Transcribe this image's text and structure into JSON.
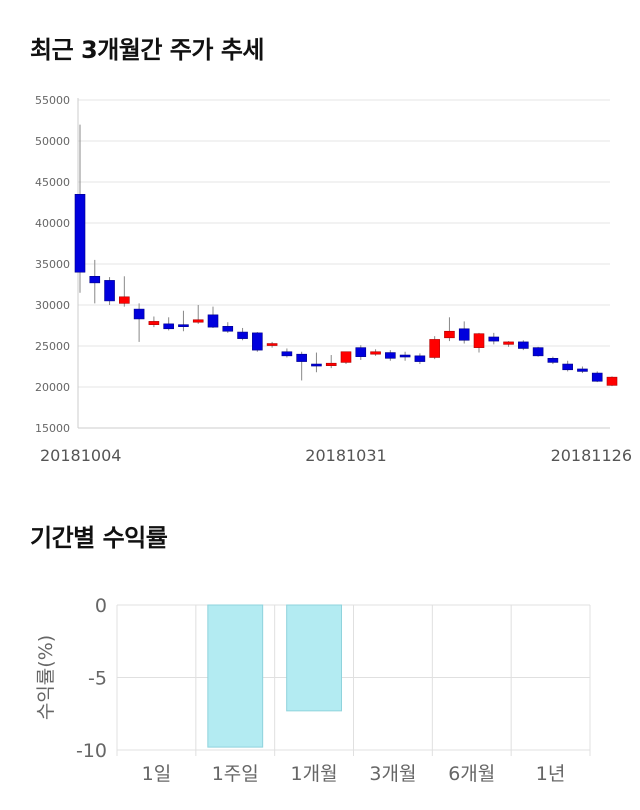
{
  "sections": {
    "price_title": "최근 3개월간 주가 추세",
    "returns_title": "기간별 수익률"
  },
  "chart_data": [
    {
      "type": "candlestick",
      "title": "최근 3개월간 주가 추세",
      "ylim": [
        15000,
        55000
      ],
      "yticks": [
        15000,
        20000,
        25000,
        30000,
        35000,
        40000,
        45000,
        50000,
        55000
      ],
      "x_tick_labels": [
        {
          "index": 0,
          "label": "20181004"
        },
        {
          "index": 18,
          "label": "20181031"
        },
        {
          "index": 36,
          "label": "20181126"
        }
      ],
      "grid": true,
      "colors": {
        "up": "#ff0000",
        "down": "#0000dd",
        "wick": "#888888",
        "grid": "#e6e6e6"
      },
      "candles": [
        {
          "o": 43500,
          "h": 52000,
          "l": 31500,
          "c": 34000
        },
        {
          "o": 33500,
          "h": 35500,
          "l": 30200,
          "c": 32700
        },
        {
          "o": 33000,
          "h": 33400,
          "l": 30000,
          "c": 30500
        },
        {
          "o": 30200,
          "h": 33500,
          "l": 29800,
          "c": 31000
        },
        {
          "o": 29500,
          "h": 30200,
          "l": 25500,
          "c": 28300
        },
        {
          "o": 27600,
          "h": 28600,
          "l": 27300,
          "c": 28000
        },
        {
          "o": 27700,
          "h": 28500,
          "l": 26900,
          "c": 27100
        },
        {
          "o": 27600,
          "h": 29300,
          "l": 26800,
          "c": 27400
        },
        {
          "o": 27900,
          "h": 30000,
          "l": 27700,
          "c": 28200
        },
        {
          "o": 28800,
          "h": 29800,
          "l": 27200,
          "c": 27300
        },
        {
          "o": 27400,
          "h": 27900,
          "l": 26600,
          "c": 26800
        },
        {
          "o": 26700,
          "h": 27200,
          "l": 25700,
          "c": 25900
        },
        {
          "o": 26600,
          "h": 26700,
          "l": 24300,
          "c": 24500
        },
        {
          "o": 25100,
          "h": 25500,
          "l": 24800,
          "c": 25300
        },
        {
          "o": 24300,
          "h": 24700,
          "l": 23600,
          "c": 23800
        },
        {
          "o": 24000,
          "h": 24300,
          "l": 20800,
          "c": 23100
        },
        {
          "o": 22800,
          "h": 24200,
          "l": 21800,
          "c": 22700
        },
        {
          "o": 22600,
          "h": 23900,
          "l": 22300,
          "c": 22900
        },
        {
          "o": 23000,
          "h": 24300,
          "l": 22800,
          "c": 24300
        },
        {
          "o": 24800,
          "h": 25100,
          "l": 23300,
          "c": 23700
        },
        {
          "o": 24000,
          "h": 24600,
          "l": 23800,
          "c": 24300
        },
        {
          "o": 24200,
          "h": 24500,
          "l": 23200,
          "c": 23500
        },
        {
          "o": 23900,
          "h": 24300,
          "l": 23200,
          "c": 23700
        },
        {
          "o": 23800,
          "h": 24100,
          "l": 22800,
          "c": 23100
        },
        {
          "o": 23600,
          "h": 26200,
          "l": 23400,
          "c": 25800
        },
        {
          "o": 26000,
          "h": 28500,
          "l": 25600,
          "c": 26800
        },
        {
          "o": 27100,
          "h": 28000,
          "l": 25300,
          "c": 25700
        },
        {
          "o": 24800,
          "h": 26600,
          "l": 24200,
          "c": 26500
        },
        {
          "o": 26100,
          "h": 26600,
          "l": 25200,
          "c": 25600
        },
        {
          "o": 25200,
          "h": 25600,
          "l": 24900,
          "c": 25500
        },
        {
          "o": 25500,
          "h": 25700,
          "l": 24500,
          "c": 24700
        },
        {
          "o": 24800,
          "h": 24900,
          "l": 23700,
          "c": 23800
        },
        {
          "o": 23500,
          "h": 23700,
          "l": 22800,
          "c": 23000
        },
        {
          "o": 22800,
          "h": 23200,
          "l": 21900,
          "c": 22100
        },
        {
          "o": 22200,
          "h": 22500,
          "l": 21700,
          "c": 21900
        },
        {
          "o": 21700,
          "h": 21900,
          "l": 20600,
          "c": 20700
        },
        {
          "o": 20200,
          "h": 21300,
          "l": 20100,
          "c": 21200
        }
      ]
    },
    {
      "type": "bar",
      "title": "기간별 수익률",
      "ylabel": "수익률(%)",
      "categories": [
        "1일",
        "1주일",
        "1개월",
        "3개월",
        "6개월",
        "1년"
      ],
      "values": [
        0,
        -9.8,
        -7.3,
        0,
        0,
        0
      ],
      "ylim": [
        -10,
        0
      ],
      "yticks": [
        0,
        -5,
        -10
      ],
      "grid": true,
      "colors": {
        "bar": "#b3ebf2",
        "bar_stroke": "#8fd3dc",
        "grid": "#e0e0e0",
        "text": "#666666"
      }
    }
  ]
}
